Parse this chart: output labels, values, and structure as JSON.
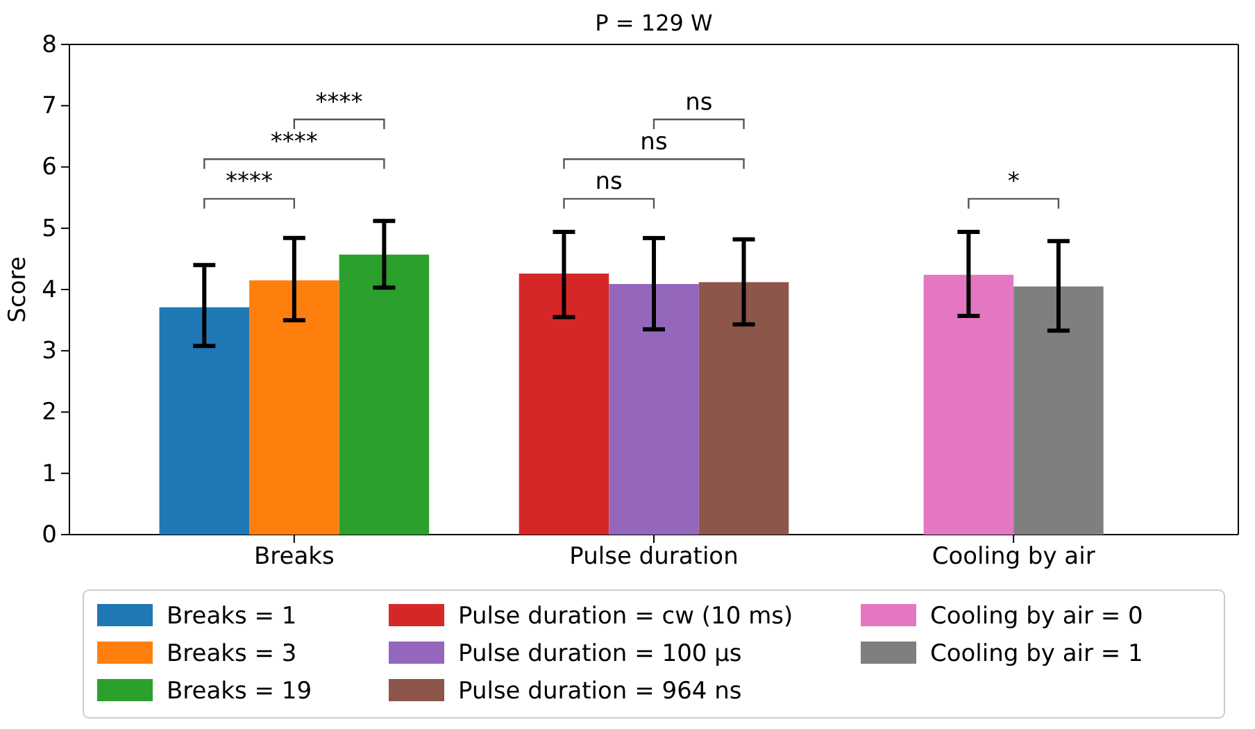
{
  "chart_data": {
    "type": "bar",
    "title": "P = 129 W",
    "ylabel": "Score",
    "categories": [
      "Breaks",
      "Pulse duration",
      "Cooling by air"
    ],
    "ylim": [
      0,
      8
    ],
    "yticks": [
      0,
      1,
      2,
      3,
      4,
      5,
      6,
      7,
      8
    ],
    "grid": false,
    "legend": "bottom",
    "series": [
      {
        "name": "Breaks = 1",
        "color": "#1f77b4",
        "values": [
          3.71,
          null,
          null
        ],
        "errors": [
          [
            3.08,
            4.4
          ],
          null,
          null
        ]
      },
      {
        "name": "Breaks = 3",
        "color": "#ff7f0e",
        "values": [
          4.15,
          null,
          null
        ],
        "errors": [
          [
            3.5,
            4.84
          ],
          null,
          null
        ]
      },
      {
        "name": "Breaks = 19",
        "color": "#2ca02c",
        "values": [
          4.57,
          null,
          null
        ],
        "errors": [
          [
            4.03,
            5.12
          ],
          null,
          null
        ]
      },
      {
        "name": "Pulse duration = cw (10 ms)",
        "color": "#d62728",
        "values": [
          null,
          4.26,
          null
        ],
        "errors": [
          null,
          [
            3.55,
            4.94
          ],
          null
        ]
      },
      {
        "name": "Pulse duration = 100 μs",
        "color": "#9467bd",
        "values": [
          null,
          4.09,
          null
        ],
        "errors": [
          null,
          [
            3.35,
            4.84
          ],
          null
        ]
      },
      {
        "name": "Pulse duration = 964 ns",
        "color": "#8c564b",
        "values": [
          null,
          4.12,
          null
        ],
        "errors": [
          null,
          [
            3.43,
            4.82
          ],
          null
        ]
      },
      {
        "name": "Cooling by air = 0",
        "color": "#e377c2",
        "values": [
          null,
          null,
          4.24
        ],
        "errors": [
          null,
          null,
          [
            3.57,
            4.94
          ]
        ]
      },
      {
        "name": "Cooling by air = 1",
        "color": "#7f7f7f",
        "values": [
          null,
          null,
          4.05
        ],
        "errors": [
          null,
          null,
          [
            3.33,
            4.79
          ]
        ]
      }
    ],
    "annotations": [
      "****",
      "****",
      "****",
      "ns",
      "ns",
      "ns",
      "*"
    ]
  }
}
